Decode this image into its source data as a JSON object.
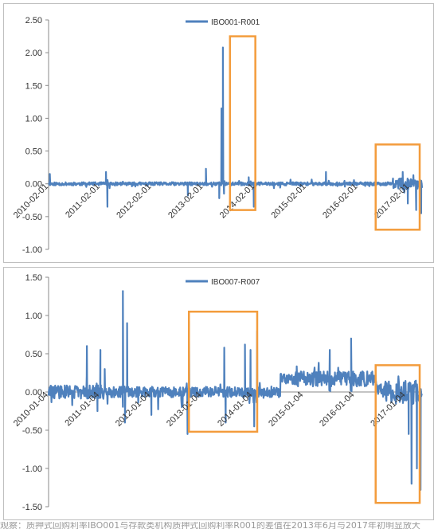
{
  "chart_data": [
    {
      "type": "line",
      "series": [
        {
          "name": "IBO001-R001",
          "color": "#4f81bd"
        }
      ],
      "legend_position": "top",
      "ylim": [
        -1.0,
        2.5
      ],
      "yticks": [
        "2.50",
        "2.00",
        "1.50",
        "1.00",
        "0.50",
        "0.00",
        "-0.50",
        "-1.00"
      ],
      "xtick_labels": [
        "2010-02-01",
        "2011-02-01",
        "2012-02-01",
        "2013-02-01",
        "2014-02-01",
        "2015-02-01",
        "2016-02-01",
        "2017-02-01"
      ],
      "x_range": [
        "2010-02-01",
        "2017-05-01"
      ],
      "spikes": [
        {
          "date": "2010-02-10",
          "value": 0.15
        },
        {
          "date": "2011-03-15",
          "value": 0.18
        },
        {
          "date": "2011-03-25",
          "value": -0.35
        },
        {
          "date": "2012-10-15",
          "value": -0.18
        },
        {
          "date": "2013-02-20",
          "value": 0.23
        },
        {
          "date": "2013-05-25",
          "value": -0.22
        },
        {
          "date": "2013-06-10",
          "value": 1.15
        },
        {
          "date": "2013-06-20",
          "value": 2.08
        },
        {
          "date": "2013-06-28",
          "value": -0.15
        },
        {
          "date": "2013-12-20",
          "value": 0.1
        },
        {
          "date": "2014-01-25",
          "value": -0.35
        },
        {
          "date": "2015-06-20",
          "value": 0.18
        },
        {
          "date": "2016-12-15",
          "value": 0.18
        },
        {
          "date": "2017-01-20",
          "value": -0.3
        },
        {
          "date": "2017-03-20",
          "value": -0.4
        },
        {
          "date": "2017-04-25",
          "value": -0.45
        }
      ],
      "highlight_boxes": [
        "2013-05 to 2013-07",
        "2016-12 to 2017-05"
      ],
      "grid": false
    },
    {
      "type": "line",
      "series": [
        {
          "name": "IBO007-R007",
          "color": "#4f81bd"
        }
      ],
      "legend_position": "top",
      "ylim": [
        -1.5,
        1.5
      ],
      "yticks": [
        "1.50",
        "1.00",
        "0.50",
        "0.00",
        "-0.50",
        "-1.00",
        "-1.50"
      ],
      "xtick_labels": [
        "2010-01-04",
        "2011-01-04",
        "2012-01-04",
        "2013-01-04",
        "2014-01-04",
        "2015-01-04",
        "2016-01-04",
        "2017-01-04"
      ],
      "x_range": [
        "2010-01-04",
        "2017-05-01"
      ],
      "spikes": [
        {
          "date": "2010-10-05",
          "value": 0.6
        },
        {
          "date": "2010-12-20",
          "value": -0.25
        },
        {
          "date": "2011-01-10",
          "value": 0.55
        },
        {
          "date": "2011-02-10",
          "value": 0.3
        },
        {
          "date": "2011-06-20",
          "value": 1.32
        },
        {
          "date": "2011-07-05",
          "value": -0.4
        },
        {
          "date": "2011-07-20",
          "value": 0.9
        },
        {
          "date": "2012-01-10",
          "value": -0.3
        },
        {
          "date": "2012-09-25",
          "value": -0.55
        },
        {
          "date": "2012-10-05",
          "value": 0.92
        },
        {
          "date": "2013-06-15",
          "value": 0.58
        },
        {
          "date": "2013-06-25",
          "value": -0.4
        },
        {
          "date": "2013-11-10",
          "value": 0.62
        },
        {
          "date": "2013-12-20",
          "value": 0.55
        },
        {
          "date": "2014-01-15",
          "value": -0.45
        },
        {
          "date": "2014-02-05",
          "value": 0.8
        },
        {
          "date": "2015-07-10",
          "value": 0.55
        },
        {
          "date": "2015-12-10",
          "value": 0.7
        },
        {
          "date": "2017-01-25",
          "value": -0.55
        },
        {
          "date": "2017-02-15",
          "value": -1.2
        },
        {
          "date": "2017-03-25",
          "value": -1.0
        },
        {
          "date": "2017-04-20",
          "value": -1.28
        }
      ],
      "highlight_boxes": [
        "2013-01 to 2014-06",
        "2016-12 to 2017-05"
      ],
      "grid": false
    }
  ],
  "footer_text": "观察：质押式回购利率IBO001与存款类机构质押式回购利率R001的差值在2013年6月与2017年初明显放大"
}
